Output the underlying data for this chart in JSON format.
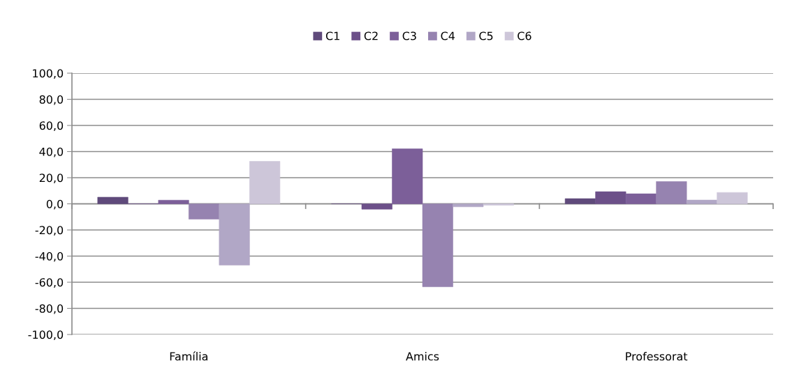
{
  "chart_data": {
    "type": "bar",
    "categories": [
      "Família",
      "Amics",
      "Professorat"
    ],
    "series": [
      {
        "name": "C1",
        "color": "#5f4a7b",
        "values": [
          5.1,
          0,
          4.0
        ]
      },
      {
        "name": "C2",
        "color": "#6c5089",
        "values": [
          0,
          -4.1,
          9.3
        ]
      },
      {
        "name": "C3",
        "color": "#7c5f99",
        "values": [
          2.8,
          42.1,
          7.7
        ]
      },
      {
        "name": "C4",
        "color": "#9683b0",
        "values": [
          -11.7,
          -63.5,
          17.1
        ]
      },
      {
        "name": "C5",
        "color": "#b1a7c6",
        "values": [
          -46.9,
          -2.3,
          2.9
        ]
      },
      {
        "name": "C6",
        "color": "#cdc6d9",
        "values": [
          32.5,
          -1.1,
          8.7
        ]
      }
    ],
    "ylim": [
      -100,
      100
    ],
    "yticks": [
      {
        "value": -100,
        "label": "-100,0"
      },
      {
        "value": -80,
        "label": "-80,0"
      },
      {
        "value": -60,
        "label": "-60,0"
      },
      {
        "value": -40,
        "label": "-40,0"
      },
      {
        "value": -20,
        "label": "-20,0"
      },
      {
        "value": 0,
        "label": "0,0"
      },
      {
        "value": 20,
        "label": "20,0"
      },
      {
        "value": 40,
        "label": "40,0"
      },
      {
        "value": 60,
        "label": "60,0"
      },
      {
        "value": 80,
        "label": "80,0"
      },
      {
        "value": 100,
        "label": "100,0"
      }
    ],
    "grid": "y",
    "legend": "top"
  }
}
